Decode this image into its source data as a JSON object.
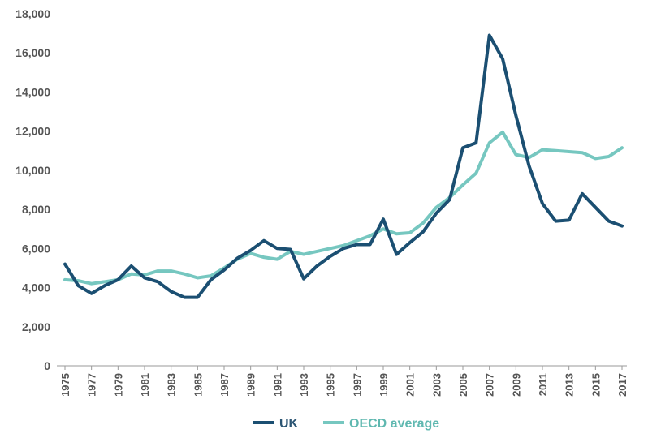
{
  "chart_data": {
    "type": "line",
    "x": [
      1975,
      1976,
      1977,
      1978,
      1979,
      1980,
      1981,
      1982,
      1983,
      1984,
      1985,
      1986,
      1987,
      1988,
      1989,
      1990,
      1991,
      1992,
      1993,
      1994,
      1995,
      1996,
      1997,
      1998,
      1999,
      2000,
      2001,
      2002,
      2003,
      2004,
      2005,
      2006,
      2007,
      2008,
      2009,
      2010,
      2011,
      2012,
      2013,
      2014,
      2015,
      2016,
      2017
    ],
    "x_tick_labels": [
      "1975",
      "1977",
      "1979",
      "1981",
      "1983",
      "1985",
      "1987",
      "1989",
      "1991",
      "1993",
      "1995",
      "1997",
      "1999",
      "2001",
      "2003",
      "2005",
      "2007",
      "2009",
      "2011",
      "2013",
      "2015",
      "2017"
    ],
    "y_tick_labels": [
      "0",
      "2,000",
      "4,000",
      "6,000",
      "8,000",
      "10,000",
      "12,000",
      "14,000",
      "16,000",
      "18,000"
    ],
    "ylim": [
      0,
      18000
    ],
    "grid": false,
    "legend_position": "bottom",
    "series": [
      {
        "name": "UK",
        "color": "#1b4f72",
        "values": [
          5200,
          4100,
          3700,
          4100,
          4400,
          5100,
          4500,
          4300,
          3800,
          3500,
          3500,
          4400,
          4900,
          5500,
          5900,
          6400,
          6000,
          5950,
          4450,
          5100,
          5600,
          6000,
          6200,
          6200,
          7500,
          5700,
          6300,
          6850,
          7800,
          8500,
          11150,
          11400,
          16900,
          15700,
          12800,
          10200,
          8300,
          7400,
          7450,
          8800,
          8100,
          7400,
          7150
        ]
      },
      {
        "name": "OECD average",
        "color": "#76c7c0",
        "values": [
          4400,
          4350,
          4200,
          4300,
          4400,
          4700,
          4650,
          4850,
          4850,
          4700,
          4500,
          4600,
          5000,
          5450,
          5750,
          5550,
          5450,
          5850,
          5700,
          5850,
          6000,
          6150,
          6400,
          6650,
          7000,
          6750,
          6800,
          7300,
          8100,
          8600,
          9250,
          9850,
          11400,
          11950,
          10800,
          10650,
          11050,
          11000,
          10950,
          10900,
          10600,
          10700,
          11150
        ]
      }
    ]
  }
}
